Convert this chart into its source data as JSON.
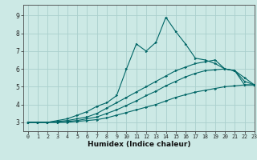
{
  "title": "",
  "xlabel": "Humidex (Indice chaleur)",
  "xlim": [
    -0.5,
    23
  ],
  "ylim": [
    2.5,
    9.6
  ],
  "yticks": [
    3,
    4,
    5,
    6,
    7,
    8,
    9
  ],
  "xticks": [
    0,
    1,
    2,
    3,
    4,
    5,
    6,
    7,
    8,
    9,
    10,
    11,
    12,
    13,
    14,
    15,
    16,
    17,
    18,
    19,
    20,
    21,
    22,
    23
  ],
  "background_color": "#cce9e5",
  "grid_color": "#aacfcc",
  "line_color": "#006666",
  "lines": [
    {
      "x": [
        0,
        1,
        2,
        3,
        4,
        5,
        6,
        7,
        8,
        9,
        10,
        11,
        12,
        13,
        14,
        15,
        16,
        17,
        18,
        19,
        20,
        21,
        22,
        23
      ],
      "y": [
        3.0,
        3.0,
        3.0,
        3.1,
        3.2,
        3.4,
        3.6,
        3.9,
        4.1,
        4.5,
        6.0,
        7.4,
        7.0,
        7.5,
        8.9,
        8.1,
        7.4,
        6.6,
        6.5,
        6.3,
        6.0,
        5.9,
        5.1,
        5.1
      ]
    },
    {
      "x": [
        0,
        1,
        2,
        3,
        4,
        5,
        6,
        7,
        8,
        9,
        10,
        11,
        12,
        13,
        14,
        15,
        16,
        17,
        18,
        19,
        20,
        21,
        22,
        23
      ],
      "y": [
        3.0,
        3.0,
        3.0,
        3.05,
        3.1,
        3.2,
        3.3,
        3.5,
        3.8,
        4.1,
        4.4,
        4.7,
        5.0,
        5.3,
        5.6,
        5.9,
        6.1,
        6.3,
        6.4,
        6.5,
        6.0,
        5.9,
        5.5,
        5.1
      ]
    },
    {
      "x": [
        0,
        1,
        2,
        3,
        4,
        5,
        6,
        7,
        8,
        9,
        10,
        11,
        12,
        13,
        14,
        15,
        16,
        17,
        18,
        19,
        20,
        21,
        22,
        23
      ],
      "y": [
        3.0,
        3.0,
        3.0,
        3.0,
        3.05,
        3.1,
        3.2,
        3.3,
        3.5,
        3.7,
        3.95,
        4.2,
        4.5,
        4.75,
        5.05,
        5.3,
        5.55,
        5.75,
        5.9,
        5.95,
        6.0,
        5.9,
        5.3,
        5.1
      ]
    },
    {
      "x": [
        0,
        1,
        2,
        3,
        4,
        5,
        6,
        7,
        8,
        9,
        10,
        11,
        12,
        13,
        14,
        15,
        16,
        17,
        18,
        19,
        20,
        21,
        22,
        23
      ],
      "y": [
        3.0,
        3.0,
        3.0,
        3.0,
        3.0,
        3.05,
        3.1,
        3.15,
        3.25,
        3.4,
        3.55,
        3.7,
        3.85,
        4.0,
        4.2,
        4.4,
        4.55,
        4.7,
        4.8,
        4.9,
        5.0,
        5.05,
        5.1,
        5.1
      ]
    }
  ]
}
